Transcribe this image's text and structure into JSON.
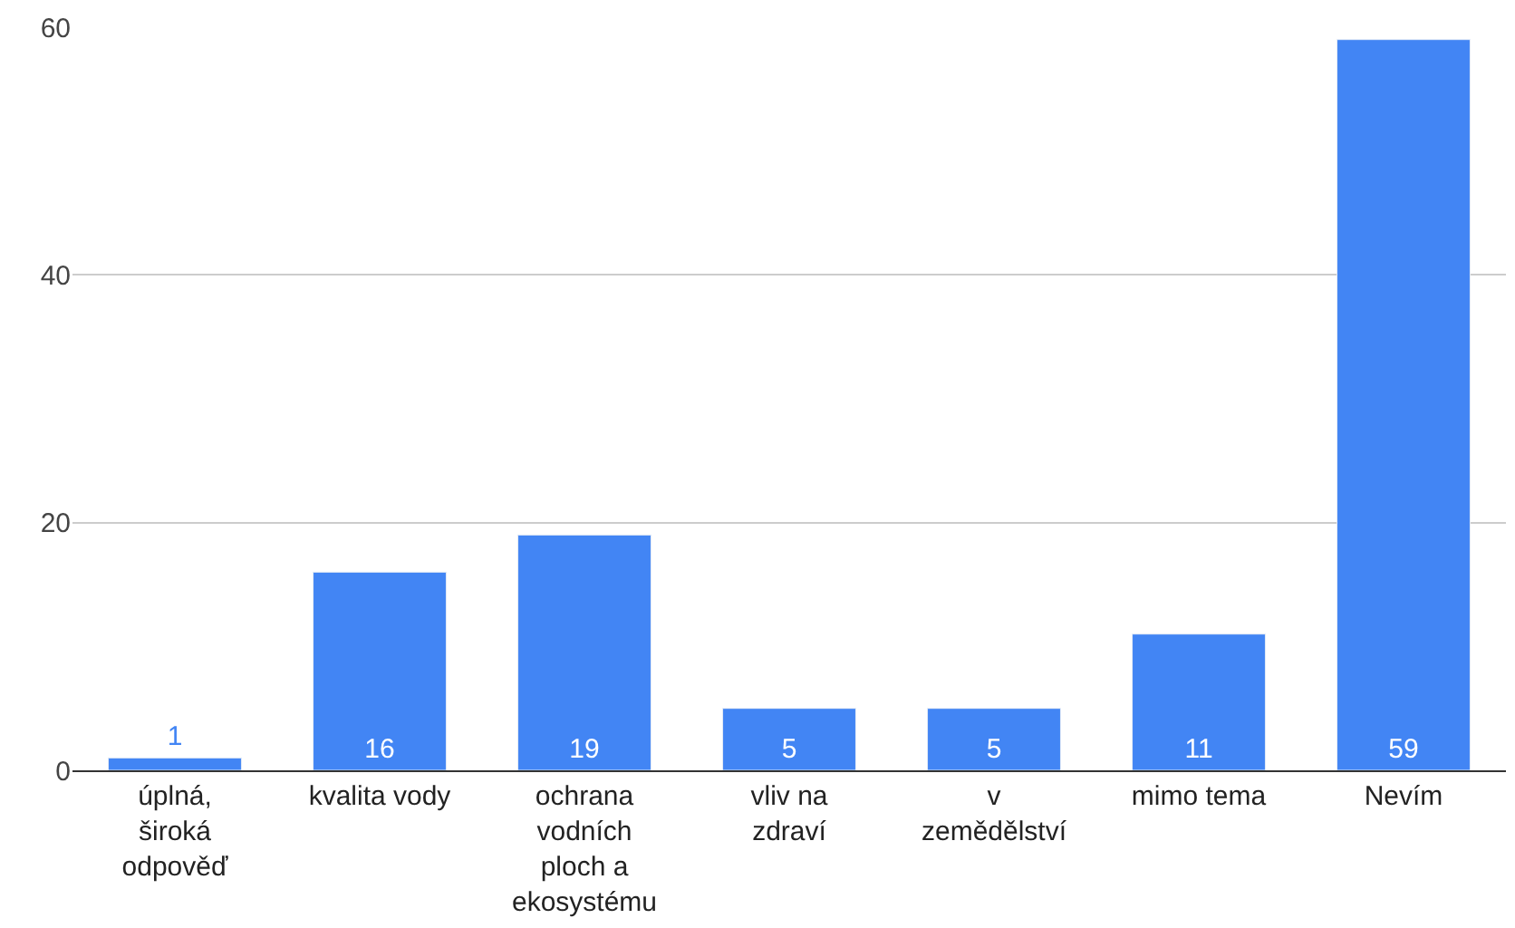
{
  "chart_data": {
    "type": "bar",
    "categories": [
      "úplná, široká odpověď",
      "kvalita vody",
      "ochrana vodních ploch a ekosystému",
      "vliv na zdraví",
      "v zemědělství",
      "mimo tema",
      "Nevím"
    ],
    "values": [
      1,
      16,
      19,
      5,
      5,
      11,
      59
    ],
    "color": "#4285f4",
    "ylim": [
      0,
      60
    ],
    "yticks": [
      0,
      20,
      40,
      60
    ],
    "grid": "y",
    "data_labels": true
  }
}
